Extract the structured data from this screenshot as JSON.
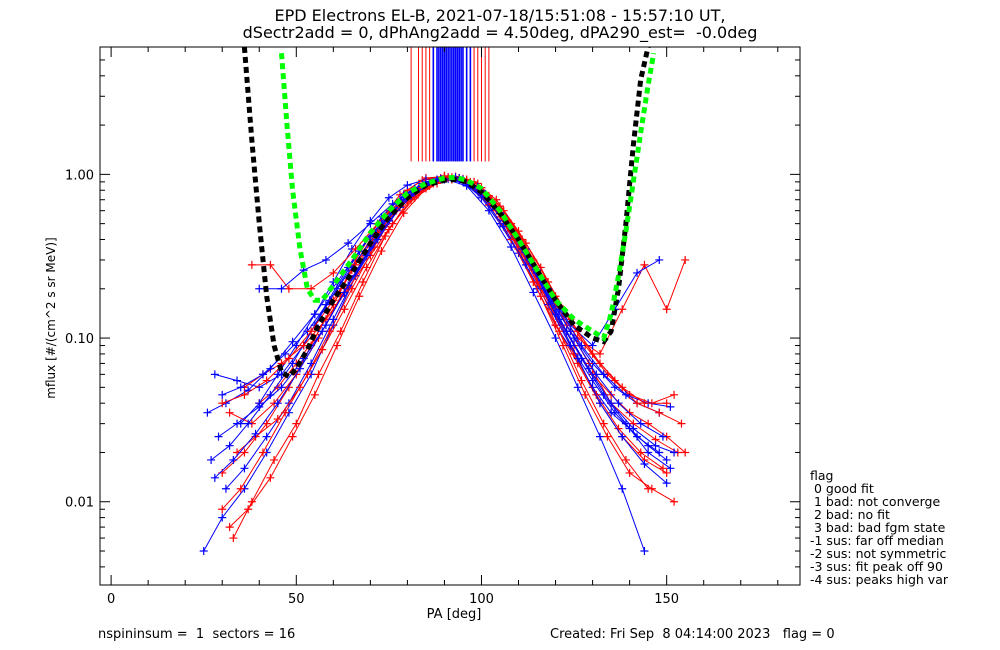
{
  "title_line1": "EPD Electrons EL-B, 2021-07-18/15:51:08 - 15:57:10 UT,",
  "title_line2": "dSectr2add = 0, dPhAng2add = 4.50deg, dPA290_est=  -0.0deg",
  "footer": {
    "left": "nspininsum =  1  sectors = 16",
    "right": "Created: Fri Sep  8 04:14:00 2023   flag = 0"
  },
  "legend": {
    "title": "flag",
    "items": [
      " 0 good fit",
      " 1 bad: not converge",
      " 2 bad: no fit",
      " 3 bad: bad fgm state",
      "-1 sus: far off median",
      "-2 sus: not symmetric",
      "-3 sus: fit peak off 90",
      "-4 sus: peaks high var"
    ]
  },
  "colors": {
    "red_series": "#ff0000",
    "blue_series": "#0000ff",
    "fit_green": "#00ff00",
    "fit_black": "#000000"
  },
  "chart_data": {
    "type": "line",
    "xlabel": "PA [deg]",
    "ylabel": "mflux [#/(cm^2 s sr MeV)]",
    "xlim": [
      -3,
      186
    ],
    "ylim": [
      0.0031,
      6.0
    ],
    "y_log": true,
    "x_ticks": [
      0,
      50,
      100,
      150
    ],
    "x_tick_labels": [
      "0",
      "50",
      "100",
      "150"
    ],
    "y_ticks": [
      0.01,
      0.1,
      1.0
    ],
    "y_tick_labels": [
      "0.01",
      "0.10",
      "1.00"
    ],
    "vertical_lines": {
      "red_x": [
        81,
        83,
        84,
        85,
        86,
        87,
        88,
        89,
        90,
        91,
        93,
        95,
        97,
        98,
        99,
        100,
        101,
        102
      ],
      "blue_x": [
        87,
        88,
        88.5,
        89,
        89.5,
        90,
        90.5,
        91,
        91.5,
        92,
        92.5,
        93,
        93.5,
        94,
        94.5,
        95,
        96,
        97
      ],
      "y_bottom": 1.2
    },
    "fits": [
      {
        "color": "black",
        "x": [
          36.0,
          38.0,
          40.0,
          42.0,
          44.0,
          46.0,
          48.0,
          50.0,
          53.0,
          56.0,
          60.0,
          65.0,
          70.0,
          75.0,
          80.0,
          85.0,
          90.0,
          93.0,
          96.0,
          100.0,
          105.0,
          110.0,
          115.0,
          120.0,
          125.0,
          130.0,
          133.0,
          135.0,
          137.0,
          139.0,
          141.0,
          143.0,
          145.0
        ],
        "y": [
          6.0,
          1.6,
          0.5,
          0.18,
          0.09,
          0.062,
          0.058,
          0.065,
          0.085,
          0.12,
          0.17,
          0.25,
          0.38,
          0.55,
          0.72,
          0.86,
          0.92,
          0.93,
          0.9,
          0.78,
          0.58,
          0.4,
          0.26,
          0.17,
          0.12,
          0.1,
          0.095,
          0.11,
          0.2,
          0.5,
          1.5,
          3.8,
          6.0
        ]
      },
      {
        "color": "green",
        "x": [
          46.0,
          47.5,
          49.0,
          51.0,
          53.0,
          55.0,
          57.0,
          60.0,
          65.0,
          70.0,
          75.0,
          80.0,
          85.0,
          90.0,
          93.0,
          96.0,
          100.0,
          105.0,
          110.0,
          115.0,
          120.0,
          125.0,
          130.0,
          133.0,
          135.0,
          137.0,
          139.0,
          141.0,
          143.0,
          145.0,
          146.5
        ],
        "y": [
          5.5,
          2.0,
          0.8,
          0.35,
          0.2,
          0.17,
          0.17,
          0.21,
          0.3,
          0.44,
          0.6,
          0.77,
          0.88,
          0.95,
          0.96,
          0.92,
          0.82,
          0.6,
          0.4,
          0.26,
          0.17,
          0.13,
          0.11,
          0.1,
          0.14,
          0.24,
          0.45,
          0.9,
          1.8,
          3.5,
          5.5
        ]
      }
    ],
    "series": [
      {
        "color": "red",
        "x": [
          40,
          45,
          50,
          55,
          60,
          65,
          70,
          75,
          80,
          85,
          90,
          95,
          100,
          105,
          110,
          115,
          120,
          125,
          130,
          135,
          140,
          145,
          150,
          155
        ],
        "y": [
          0.04,
          0.05,
          0.07,
          0.1,
          0.16,
          0.26,
          0.4,
          0.6,
          0.8,
          0.95,
          0.97,
          0.92,
          0.75,
          0.55,
          0.36,
          0.22,
          0.14,
          0.09,
          0.06,
          0.045,
          0.035,
          0.03,
          0.025,
          0.02
        ]
      },
      {
        "color": "blue",
        "x": [
          35,
          40,
          45,
          50,
          55,
          60,
          65,
          70,
          75,
          80,
          85,
          90,
          95,
          100,
          105,
          110,
          115,
          120,
          125,
          130,
          135,
          140,
          145,
          150
        ],
        "y": [
          0.03,
          0.04,
          0.06,
          0.09,
          0.14,
          0.22,
          0.35,
          0.52,
          0.72,
          0.86,
          0.93,
          0.95,
          0.9,
          0.72,
          0.5,
          0.33,
          0.2,
          0.12,
          0.08,
          0.05,
          0.035,
          0.028,
          0.022,
          0.018
        ]
      },
      {
        "color": "red",
        "x": [
          30,
          36,
          42,
          48,
          54,
          60,
          66,
          72,
          78,
          84,
          90,
          96,
          102,
          108,
          114,
          120,
          126,
          132,
          138,
          144,
          150
        ],
        "y": [
          0.015,
          0.02,
          0.03,
          0.05,
          0.09,
          0.16,
          0.3,
          0.5,
          0.75,
          0.92,
          0.98,
          0.9,
          0.65,
          0.4,
          0.22,
          0.12,
          0.07,
          0.04,
          0.025,
          0.018,
          0.015
        ]
      },
      {
        "color": "blue",
        "x": [
          25,
          30,
          36,
          42,
          48,
          54,
          60,
          66,
          72,
          78,
          84,
          90,
          96,
          102,
          108,
          114,
          120,
          126,
          132,
          138,
          144
        ],
        "y": [
          0.005,
          0.008,
          0.012,
          0.02,
          0.035,
          0.06,
          0.12,
          0.24,
          0.45,
          0.7,
          0.88,
          0.94,
          0.85,
          0.6,
          0.36,
          0.19,
          0.1,
          0.05,
          0.025,
          0.012,
          0.005
        ]
      },
      {
        "color": "red",
        "x": [
          33,
          38,
          44,
          50,
          56,
          62,
          68,
          74,
          80,
          86,
          92,
          98,
          104,
          110,
          116,
          122,
          128,
          134,
          140,
          146,
          152
        ],
        "y": [
          0.006,
          0.01,
          0.018,
          0.03,
          0.06,
          0.11,
          0.22,
          0.42,
          0.68,
          0.88,
          0.96,
          0.86,
          0.6,
          0.35,
          0.18,
          0.09,
          0.045,
          0.025,
          0.015,
          0.012,
          0.01
        ]
      },
      {
        "color": "blue",
        "x": [
          28,
          34,
          40,
          46,
          52,
          58,
          64,
          70,
          76,
          82,
          88,
          94,
          100,
          106,
          112,
          118,
          124,
          130,
          136,
          142,
          148
        ],
        "y": [
          0.06,
          0.055,
          0.05,
          0.06,
          0.09,
          0.16,
          0.27,
          0.42,
          0.62,
          0.8,
          0.92,
          0.93,
          0.78,
          0.52,
          0.3,
          0.18,
          0.11,
          0.07,
          0.05,
          0.04,
          0.035
        ]
      },
      {
        "color": "red",
        "x": [
          32,
          38,
          44,
          50,
          56,
          62,
          68,
          74,
          80,
          86,
          92,
          98,
          104,
          110,
          116,
          122,
          128,
          134,
          140,
          146,
          152
        ],
        "y": [
          0.035,
          0.03,
          0.04,
          0.06,
          0.1,
          0.18,
          0.3,
          0.48,
          0.7,
          0.85,
          0.93,
          0.9,
          0.7,
          0.45,
          0.27,
          0.15,
          0.09,
          0.06,
          0.045,
          0.04,
          0.045
        ]
      },
      {
        "color": "blue",
        "x": [
          27,
          32,
          37,
          43,
          49,
          55,
          61,
          67,
          73,
          79,
          85,
          91,
          97,
          103,
          109,
          115,
          121,
          127,
          133,
          139,
          145,
          151
        ],
        "y": [
          0.018,
          0.022,
          0.03,
          0.045,
          0.07,
          0.12,
          0.2,
          0.34,
          0.55,
          0.75,
          0.9,
          0.96,
          0.88,
          0.66,
          0.42,
          0.24,
          0.13,
          0.075,
          0.045,
          0.03,
          0.02,
          0.016
        ]
      },
      {
        "color": "red",
        "x": [
          30,
          35,
          41,
          47,
          53,
          59,
          65,
          71,
          77,
          83,
          89,
          95,
          101,
          107,
          113,
          119,
          125,
          131,
          137,
          143,
          149
        ],
        "y": [
          0.009,
          0.012,
          0.02,
          0.035,
          0.06,
          0.11,
          0.2,
          0.36,
          0.6,
          0.82,
          0.95,
          0.94,
          0.75,
          0.5,
          0.28,
          0.15,
          0.08,
          0.045,
          0.028,
          0.02,
          0.016
        ]
      },
      {
        "color": "blue",
        "x": [
          31,
          36,
          42,
          48,
          54,
          60,
          66,
          72,
          78,
          84,
          90,
          96,
          102,
          108,
          114,
          120,
          126,
          132,
          138,
          144,
          150
        ],
        "y": [
          0.012,
          0.016,
          0.025,
          0.04,
          0.07,
          0.13,
          0.24,
          0.4,
          0.63,
          0.83,
          0.93,
          0.9,
          0.7,
          0.45,
          0.26,
          0.14,
          0.075,
          0.04,
          0.025,
          0.017,
          0.013
        ]
      },
      {
        "color": "red",
        "x": [
          36,
          41,
          46,
          52,
          58,
          64,
          70,
          76,
          82,
          88,
          94,
          100,
          106,
          112,
          118,
          124,
          130,
          136,
          142,
          148,
          154
        ],
        "y": [
          0.05,
          0.06,
          0.07,
          0.09,
          0.13,
          0.2,
          0.32,
          0.5,
          0.72,
          0.88,
          0.95,
          0.83,
          0.6,
          0.38,
          0.22,
          0.13,
          0.08,
          0.055,
          0.04,
          0.035,
          0.03
        ]
      },
      {
        "color": "blue",
        "x": [
          29,
          34,
          40,
          46,
          52,
          58,
          64,
          70,
          76,
          82,
          88,
          94,
          100,
          106,
          112,
          118,
          124,
          130,
          136,
          142,
          148
        ],
        "y": [
          0.025,
          0.03,
          0.038,
          0.05,
          0.075,
          0.12,
          0.21,
          0.36,
          0.58,
          0.8,
          0.92,
          0.92,
          0.74,
          0.48,
          0.28,
          0.16,
          0.09,
          0.055,
          0.035,
          0.025,
          0.02
        ]
      },
      {
        "color": "red",
        "x": [
          38,
          43,
          48,
          54,
          60,
          66,
          72,
          78,
          84,
          90,
          96,
          102,
          108,
          114,
          120,
          126,
          132,
          138,
          144,
          150,
          155
        ],
        "y": [
          0.28,
          0.28,
          0.2,
          0.2,
          0.25,
          0.35,
          0.5,
          0.68,
          0.85,
          0.97,
          0.92,
          0.7,
          0.45,
          0.27,
          0.16,
          0.1,
          0.08,
          0.15,
          0.28,
          0.15,
          0.3
        ]
      },
      {
        "color": "blue",
        "x": [
          40,
          46,
          52,
          58,
          64,
          70,
          76,
          82,
          88,
          94,
          100,
          106,
          112,
          118,
          124,
          130,
          136,
          142,
          148
        ],
        "y": [
          0.2,
          0.2,
          0.26,
          0.3,
          0.38,
          0.5,
          0.66,
          0.82,
          0.93,
          0.95,
          0.8,
          0.56,
          0.35,
          0.2,
          0.12,
          0.09,
          0.15,
          0.25,
          0.3
        ]
      },
      {
        "color": "red",
        "x": [
          34,
          39,
          45,
          51,
          57,
          63,
          69,
          75,
          81,
          87,
          93,
          99,
          105,
          111,
          117,
          123,
          129,
          135,
          141,
          147,
          153
        ],
        "y": [
          0.02,
          0.025,
          0.032,
          0.05,
          0.085,
          0.15,
          0.27,
          0.46,
          0.7,
          0.88,
          0.97,
          0.88,
          0.64,
          0.4,
          0.23,
          0.12,
          0.07,
          0.04,
          0.03,
          0.024,
          0.02
        ]
      },
      {
        "color": "blue",
        "x": [
          26,
          31,
          37,
          43,
          49,
          55,
          61,
          67,
          73,
          79,
          85,
          91,
          97,
          103,
          109,
          115,
          121,
          127,
          133,
          139,
          145,
          151
        ],
        "y": [
          0.035,
          0.04,
          0.048,
          0.065,
          0.095,
          0.14,
          0.22,
          0.34,
          0.5,
          0.7,
          0.86,
          0.94,
          0.86,
          0.64,
          0.42,
          0.26,
          0.15,
          0.09,
          0.06,
          0.045,
          0.04,
          0.038
        ]
      },
      {
        "color": "red",
        "x": [
          32,
          37,
          43,
          49,
          55,
          61,
          67,
          73,
          79,
          85,
          91,
          97,
          103,
          109,
          115,
          121,
          127,
          133,
          139,
          145
        ],
        "y": [
          0.007,
          0.009,
          0.014,
          0.025,
          0.045,
          0.09,
          0.18,
          0.34,
          0.58,
          0.82,
          0.96,
          0.9,
          0.66,
          0.4,
          0.22,
          0.11,
          0.055,
          0.03,
          0.018,
          0.012
        ]
      },
      {
        "color": "blue",
        "x": [
          30,
          35,
          41,
          47,
          53,
          59,
          65,
          71,
          77,
          83,
          89,
          95,
          101,
          107,
          113,
          119,
          125,
          131,
          137,
          143,
          149
        ],
        "y": [
          0.045,
          0.05,
          0.06,
          0.08,
          0.11,
          0.17,
          0.27,
          0.42,
          0.62,
          0.82,
          0.94,
          0.93,
          0.76,
          0.5,
          0.3,
          0.17,
          0.1,
          0.06,
          0.04,
          0.03,
          0.025
        ]
      },
      {
        "color": "red",
        "x": [
          30,
          36,
          42,
          48,
          54,
          60,
          66,
          72,
          78,
          84,
          90,
          96,
          102,
          108,
          114,
          120,
          126,
          132,
          138,
          144,
          150
        ],
        "y": [
          0.04,
          0.045,
          0.055,
          0.075,
          0.11,
          0.17,
          0.28,
          0.44,
          0.64,
          0.83,
          0.95,
          0.93,
          0.74,
          0.5,
          0.3,
          0.18,
          0.11,
          0.07,
          0.05,
          0.04,
          0.04
        ]
      },
      {
        "color": "blue",
        "x": [
          28,
          33,
          39,
          45,
          51,
          57,
          63,
          69,
          75,
          81,
          87,
          93,
          99,
          105,
          111,
          117,
          123,
          129,
          135,
          141,
          147,
          152
        ],
        "y": [
          0.014,
          0.018,
          0.026,
          0.04,
          0.065,
          0.11,
          0.19,
          0.32,
          0.52,
          0.74,
          0.9,
          0.96,
          0.84,
          0.58,
          0.35,
          0.2,
          0.11,
          0.065,
          0.04,
          0.028,
          0.022,
          0.02
        ]
      }
    ]
  }
}
